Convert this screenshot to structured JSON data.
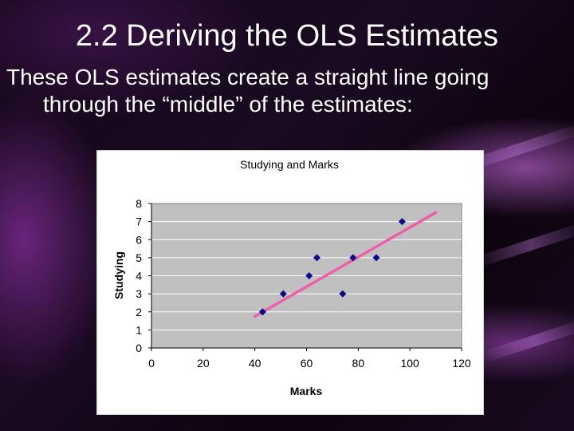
{
  "slide": {
    "title": "2.2 Deriving the OLS Estimates",
    "body_line1": "These OLS estimates create a straight line going",
    "body_line2": "through the “middle” of the estimates:"
  },
  "chart_data": {
    "type": "scatter",
    "title": "Studying and Marks",
    "xlabel": "Marks",
    "ylabel": "Studying",
    "xlim": [
      0,
      120
    ],
    "ylim": [
      0,
      8
    ],
    "xticks": [
      0,
      20,
      40,
      60,
      80,
      100,
      120
    ],
    "yticks": [
      0,
      1,
      2,
      3,
      4,
      5,
      6,
      7,
      8
    ],
    "grid": true,
    "legend": "none",
    "series": [
      {
        "name": "Studying",
        "color": "#0a0a8c",
        "marker": "diamond",
        "points": [
          {
            "x": 43,
            "y": 2
          },
          {
            "x": 51,
            "y": 3
          },
          {
            "x": 61,
            "y": 4
          },
          {
            "x": 64,
            "y": 5
          },
          {
            "x": 74,
            "y": 3
          },
          {
            "x": 78,
            "y": 5
          },
          {
            "x": 87,
            "y": 5
          },
          {
            "x": 97,
            "y": 7
          }
        ]
      }
    ],
    "fit_line": {
      "name": "OLS line",
      "color": "#ee5fa7",
      "start": {
        "x": 40,
        "y": 1.75
      },
      "end": {
        "x": 110,
        "y": 7.5
      }
    },
    "plot_area_color": "#c0c0c0",
    "grid_color": "#ffffff"
  }
}
